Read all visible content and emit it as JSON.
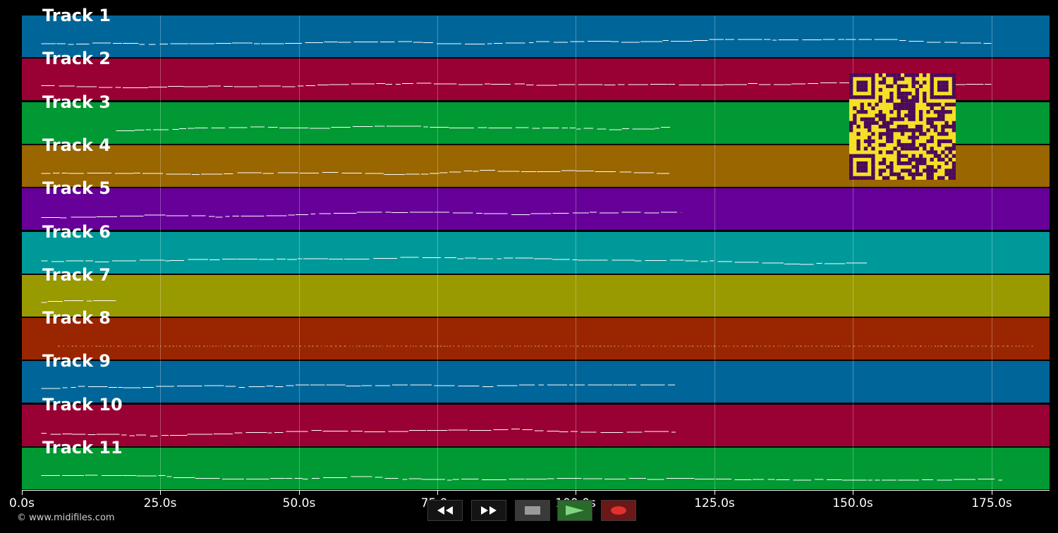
{
  "copyright": "© www.midifiles.com",
  "time_axis": {
    "min": 0,
    "max": 185.5,
    "ticks": [
      {
        "value": 0,
        "label": "0.0s"
      },
      {
        "value": 25,
        "label": "25.0s"
      },
      {
        "value": 50,
        "label": "50.0s"
      },
      {
        "value": 75,
        "label": "75.0s"
      },
      {
        "value": 100,
        "label": "100.0s"
      },
      {
        "value": 125,
        "label": "125.0s"
      },
      {
        "value": 150,
        "label": "150.0s"
      },
      {
        "value": 175,
        "label": "175.0s"
      }
    ]
  },
  "tracks": [
    {
      "name": "Track 1",
      "color": "#006699",
      "start": 3.5,
      "end": 175
    },
    {
      "name": "Track 2",
      "color": "#990033",
      "start": 3.5,
      "end": 175
    },
    {
      "name": "Track 3",
      "color": "#009933",
      "start": 17,
      "end": 117
    },
    {
      "name": "Track 4",
      "color": "#996600",
      "start": 3.5,
      "end": 117
    },
    {
      "name": "Track 5",
      "color": "#660099",
      "start": 3.5,
      "end": 119
    },
    {
      "name": "Track 6",
      "color": "#009999",
      "start": 3.5,
      "end": 152.5
    },
    {
      "name": "Track 7",
      "color": "#999900",
      "start": 3.5,
      "end": 17
    },
    {
      "name": "Track 8",
      "color": "#992600",
      "start": 6.5,
      "end": 183
    },
    {
      "name": "Track 9",
      "color": "#006699",
      "start": 3.5,
      "end": 118
    },
    {
      "name": "Track 10",
      "color": "#990033",
      "start": 3.5,
      "end": 118
    },
    {
      "name": "Track 11",
      "color": "#009933",
      "start": 3.5,
      "end": 177
    }
  ],
  "controls": {
    "rewind": "rewind-icon",
    "fast_forward": "fast-forward-icon",
    "stop": "stop-icon",
    "play": "play-icon",
    "record": "record-icon"
  },
  "qr_code": {
    "fg": "#4a0a5a",
    "bg": "#f6e027"
  }
}
